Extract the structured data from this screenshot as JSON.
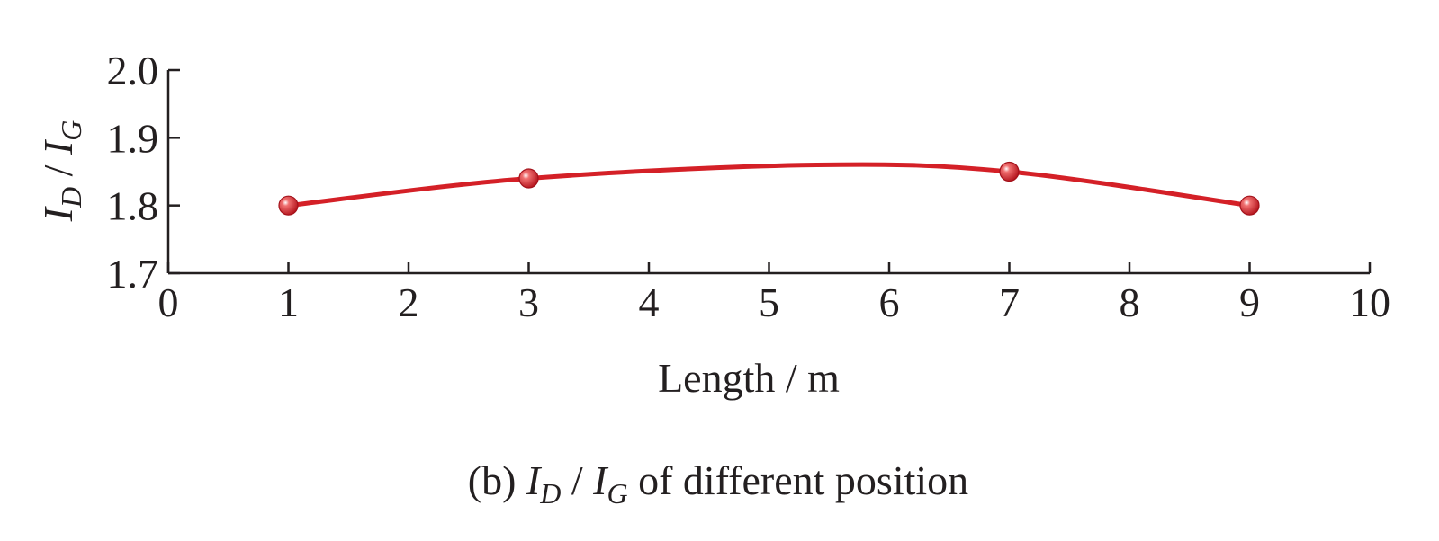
{
  "chart_data": {
    "type": "line",
    "x": [
      1,
      3,
      7,
      9
    ],
    "series": [
      {
        "values": [
          1.8,
          1.84,
          1.85,
          1.8
        ]
      }
    ],
    "curve_peak": {
      "x": 5.4,
      "y": 1.86
    },
    "xlim": [
      0,
      10
    ],
    "ylim": [
      1.7,
      2.0
    ],
    "x_ticks": [
      "0",
      "1",
      "2",
      "3",
      "4",
      "5",
      "6",
      "7",
      "8",
      "9",
      "10"
    ],
    "y_ticks": [
      "1.7",
      "1.8",
      "1.9",
      "2.0"
    ],
    "xlabel": "Length / m",
    "ylabel": {
      "i1": "I",
      "sub1": "D",
      "sep": " / ",
      "i2": "I",
      "sub2": "G"
    },
    "caption": {
      "prefix": "(b) ",
      "i1": "I",
      "sub1": "D",
      "sep": " / ",
      "i2": "I",
      "sub2": "G",
      "suffix": " of different position"
    },
    "grid": false,
    "legend": "none",
    "colors": {
      "line": "#d42027",
      "marker": "#d42027",
      "axis": "#231f20"
    }
  }
}
